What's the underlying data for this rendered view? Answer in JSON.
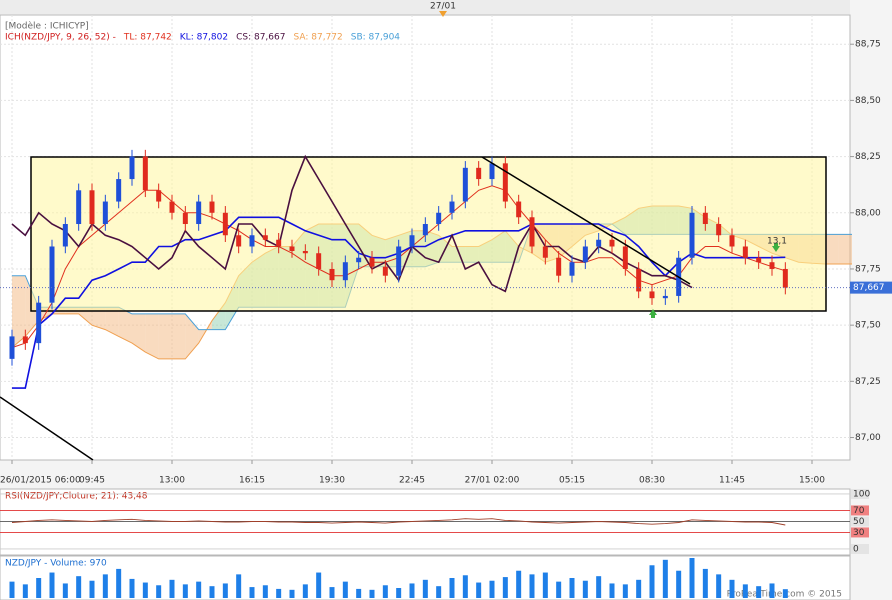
{
  "header": {
    "date_marker": "27/01"
  },
  "chart_data": {
    "type": "candlestick",
    "model_label": "[Modèle : ICHICYP]",
    "legend_title": "ICH(NZD/JPY, 9, 26, 52) -",
    "categories": [
      "26/01/2015 06:00",
      null,
      null,
      null,
      null,
      null,
      "09:45",
      null,
      null,
      null,
      null,
      null,
      "13:00",
      null,
      null,
      null,
      null,
      null,
      "16:15",
      null,
      null,
      null,
      null,
      null,
      "19:30",
      null,
      null,
      null,
      null,
      null,
      "22:45",
      null,
      null,
      null,
      null,
      null,
      "27/01 02:00",
      null,
      null,
      null,
      null,
      null,
      "05:15",
      null,
      null,
      null,
      null,
      null,
      "08:30",
      null,
      null,
      null,
      null,
      null,
      "11:45",
      null,
      null,
      null,
      null,
      null,
      "15:00",
      null,
      null,
      null
    ],
    "open": [
      87.35,
      87.45,
      87.42,
      87.6,
      87.85,
      87.95,
      88.1,
      87.95,
      88.05,
      88.15,
      88.25,
      88.1,
      88.05,
      88.0,
      87.95,
      88.05,
      88.0,
      87.9,
      87.85,
      87.9,
      87.88,
      87.85,
      87.83,
      87.82,
      87.75,
      87.7,
      87.78,
      87.8,
      87.76,
      87.72,
      87.85,
      87.9,
      87.95,
      88.0,
      88.05,
      88.2,
      88.15,
      88.22,
      88.05,
      87.98,
      87.85,
      87.8,
      87.72,
      87.78,
      87.85,
      87.88,
      87.85,
      87.75,
      87.65,
      87.62,
      87.63,
      87.8,
      88.0,
      87.95,
      87.9,
      87.85,
      87.8,
      87.78,
      87.75,
      null,
      null,
      null,
      null,
      null
    ],
    "high": [
      87.48,
      87.48,
      87.63,
      87.88,
      87.98,
      88.13,
      88.13,
      88.08,
      88.18,
      88.28,
      88.28,
      88.13,
      88.08,
      88.03,
      88.08,
      88.08,
      88.03,
      87.93,
      87.93,
      87.93,
      87.91,
      87.88,
      87.86,
      87.85,
      87.78,
      87.81,
      87.83,
      87.83,
      87.79,
      87.88,
      87.93,
      87.98,
      88.03,
      88.08,
      88.23,
      88.23,
      88.25,
      88.25,
      88.08,
      88.01,
      87.88,
      87.83,
      87.81,
      87.88,
      87.91,
      87.91,
      87.88,
      87.78,
      87.68,
      87.66,
      87.83,
      88.03,
      88.03,
      87.98,
      87.93,
      87.88,
      87.83,
      87.81,
      87.78,
      null,
      null,
      null,
      null,
      null
    ],
    "low": [
      87.32,
      87.39,
      87.39,
      87.57,
      87.82,
      87.92,
      87.92,
      87.92,
      88.02,
      88.12,
      88.07,
      88.02,
      87.97,
      87.92,
      87.92,
      87.97,
      87.87,
      87.82,
      87.82,
      87.85,
      87.82,
      87.8,
      87.79,
      87.72,
      87.67,
      87.67,
      87.75,
      87.73,
      87.69,
      87.69,
      87.82,
      87.87,
      87.92,
      87.97,
      88.02,
      88.12,
      88.12,
      88.02,
      87.95,
      87.82,
      87.77,
      87.69,
      87.69,
      87.75,
      87.82,
      87.82,
      87.72,
      87.62,
      87.59,
      87.59,
      87.6,
      87.77,
      87.92,
      87.87,
      87.82,
      87.77,
      87.75,
      87.72,
      87.637,
      null,
      null,
      null,
      null,
      null
    ],
    "close": [
      87.45,
      87.42,
      87.6,
      87.85,
      87.95,
      88.1,
      87.95,
      88.05,
      88.15,
      88.25,
      88.1,
      88.05,
      88.0,
      87.95,
      88.05,
      88.0,
      87.9,
      87.85,
      87.9,
      87.88,
      87.85,
      87.83,
      87.82,
      87.75,
      87.7,
      87.78,
      87.8,
      87.76,
      87.72,
      87.85,
      87.9,
      87.95,
      88.0,
      88.05,
      88.2,
      88.15,
      88.22,
      88.05,
      87.98,
      87.85,
      87.8,
      87.72,
      87.78,
      87.85,
      87.88,
      87.85,
      87.75,
      87.65,
      87.62,
      87.63,
      87.8,
      88.0,
      87.95,
      87.9,
      87.85,
      87.8,
      87.78,
      87.75,
      87.667,
      null,
      null,
      null,
      null,
      null
    ],
    "up_color": "#1f4fd8",
    "down_color": "#e02a1e",
    "series": [
      {
        "name": "TL: 87,742",
        "color": "#e0301e",
        "values": [
          87.4,
          87.42,
          87.5,
          87.6,
          87.75,
          87.85,
          87.9,
          87.95,
          88.0,
          88.05,
          88.1,
          88.1,
          88.05,
          88.0,
          88.0,
          87.98,
          87.95,
          87.92,
          87.88,
          87.85,
          87.85,
          87.82,
          87.78,
          87.75,
          87.72,
          87.72,
          87.75,
          87.78,
          87.78,
          87.8,
          87.85,
          87.9,
          87.95,
          88.0,
          88.05,
          88.1,
          88.12,
          88.1,
          88.02,
          87.95,
          87.88,
          87.82,
          87.78,
          87.78,
          87.8,
          87.8,
          87.75,
          87.7,
          87.68,
          87.7,
          87.72,
          87.8,
          87.85,
          87.85,
          87.82,
          87.8,
          87.78,
          87.76,
          87.742,
          null,
          null,
          null,
          null,
          null
        ]
      },
      {
        "name": "KL: 87,802",
        "color": "#1010e0",
        "values": [
          87.22,
          87.22,
          87.5,
          87.55,
          87.62,
          87.62,
          87.7,
          87.72,
          87.75,
          87.78,
          87.78,
          87.85,
          87.85,
          87.88,
          87.88,
          87.9,
          87.92,
          87.98,
          87.98,
          87.98,
          87.98,
          87.95,
          87.92,
          87.9,
          87.88,
          87.88,
          87.82,
          87.8,
          87.8,
          87.82,
          87.85,
          87.85,
          87.88,
          87.9,
          87.92,
          87.92,
          87.92,
          87.92,
          87.92,
          87.95,
          87.95,
          87.95,
          87.95,
          87.95,
          87.95,
          87.92,
          87.9,
          87.85,
          87.78,
          87.72,
          87.78,
          87.82,
          87.8,
          87.8,
          87.8,
          87.8,
          87.8,
          87.8,
          87.802,
          null,
          null,
          null,
          null,
          null
        ]
      },
      {
        "name": "CS: 87,667",
        "color": "#4a1040",
        "values": [
          87.95,
          87.9,
          88.0,
          87.95,
          87.92,
          87.85,
          87.95,
          87.9,
          87.88,
          87.85,
          87.8,
          87.75,
          87.8,
          87.92,
          87.85,
          87.8,
          87.75,
          87.95,
          87.95,
          87.88,
          87.85,
          88.1,
          88.25,
          88.15,
          88.05,
          87.95,
          87.85,
          87.75,
          87.78,
          87.7,
          87.85,
          87.8,
          87.78,
          87.9,
          87.75,
          87.78,
          87.68,
          87.65,
          87.85,
          87.95,
          87.85,
          87.85,
          87.8,
          87.78,
          87.85,
          87.82,
          87.78,
          87.75,
          87.72,
          87.72,
          87.7,
          87.667,
          null,
          null,
          null,
          null,
          null,
          null,
          null,
          null,
          null,
          null,
          null,
          null
        ]
      },
      {
        "name": "SA: 87,772",
        "color": "#f0a050",
        "values": [
          87.4,
          87.45,
          87.52,
          87.55,
          87.55,
          87.55,
          87.5,
          87.48,
          87.45,
          87.42,
          87.38,
          87.35,
          87.35,
          87.35,
          87.42,
          87.52,
          87.6,
          87.72,
          87.78,
          87.82,
          87.85,
          87.85,
          87.92,
          87.95,
          87.95,
          87.95,
          87.95,
          87.9,
          87.88,
          87.9,
          87.92,
          87.92,
          87.9,
          87.85,
          87.85,
          87.85,
          87.88,
          87.92,
          87.85,
          87.82,
          87.78,
          87.8,
          87.85,
          87.9,
          87.92,
          87.95,
          87.98,
          88.02,
          88.03,
          88.03,
          88.03,
          88.02,
          87.98,
          87.95,
          87.9,
          87.88,
          87.85,
          87.82,
          87.8,
          87.78,
          87.775,
          87.772,
          87.772,
          87.772
        ]
      },
      {
        "name": "SB: 87,904",
        "color": "#4aa0d8",
        "values": [
          87.72,
          87.72,
          87.58,
          87.58,
          87.58,
          87.58,
          87.58,
          87.58,
          87.58,
          87.55,
          87.55,
          87.55,
          87.55,
          87.55,
          87.48,
          87.48,
          87.48,
          87.58,
          87.58,
          87.58,
          87.58,
          87.58,
          87.58,
          87.58,
          87.58,
          87.58,
          87.76,
          87.76,
          87.76,
          87.76,
          87.76,
          87.76,
          87.78,
          87.78,
          87.78,
          87.78,
          87.78,
          87.78,
          87.78,
          87.95,
          87.95,
          87.95,
          87.95,
          87.95,
          87.95,
          87.95,
          87.904,
          87.904,
          87.904,
          87.904,
          87.904,
          87.904,
          87.904,
          87.904,
          87.904,
          87.904,
          87.904,
          87.904,
          87.904,
          87.904,
          87.904,
          87.904,
          87.904,
          87.904
        ]
      }
    ],
    "ylim": [
      86.9,
      88.88
    ],
    "yticks": [
      {
        "value": 87.0,
        "label": "87,00"
      },
      {
        "value": 87.25,
        "label": "87,25"
      },
      {
        "value": 87.5,
        "label": "87,50"
      },
      {
        "value": 87.75,
        "label": "87,75"
      },
      {
        "value": 88.0,
        "label": "88,00"
      },
      {
        "value": 88.25,
        "label": "88,25"
      },
      {
        "value": 88.5,
        "label": "88,50"
      },
      {
        "value": 88.75,
        "label": "88,75"
      }
    ],
    "grid": true,
    "last_price": {
      "value": 87.667,
      "label": "87,667"
    },
    "annotation": "13,1",
    "rsi": {
      "title": "RSI(NZD/JPY;Cloture; 21): 43,48",
      "color": "#a0402a",
      "values": [
        48,
        50,
        52,
        53,
        52,
        51,
        50,
        52,
        53,
        54,
        52,
        51,
        50,
        50,
        51,
        50,
        49,
        49,
        50,
        50,
        49,
        49,
        48,
        48,
        47,
        48,
        49,
        48,
        47,
        49,
        50,
        51,
        52,
        53,
        55,
        54,
        55,
        52,
        51,
        49,
        48,
        47,
        48,
        49,
        50,
        49,
        48,
        46,
        45,
        46,
        48,
        53,
        52,
        51,
        50,
        49,
        49,
        48,
        43.48,
        null,
        null,
        null,
        null,
        null
      ],
      "ylim": [
        -11,
        109
      ],
      "yticks": [
        100,
        70,
        50,
        30,
        0
      ]
    },
    "volume": {
      "title": "NZD/JPY - Volume: 970",
      "color": "#1e7fe8",
      "values": [
        1800,
        1500,
        2200,
        2800,
        1600,
        2400,
        1900,
        2600,
        3200,
        2100,
        1700,
        1400,
        2000,
        1500,
        1800,
        1300,
        1600,
        2600,
        1200,
        1400,
        1000,
        900,
        1500,
        2800,
        1200,
        1800,
        1000,
        900,
        1400,
        1100,
        1600,
        2000,
        1300,
        2200,
        2500,
        1700,
        1900,
        2300,
        3000,
        2600,
        2800,
        1800,
        2200,
        1900,
        2400,
        1600,
        1500,
        2000,
        3600,
        4200,
        3000,
        4400,
        3200,
        2600,
        2000,
        1500,
        1300,
        1600,
        970,
        null,
        null,
        null,
        null,
        null
      ]
    },
    "credit": "ProRealTime.com © 2015"
  }
}
